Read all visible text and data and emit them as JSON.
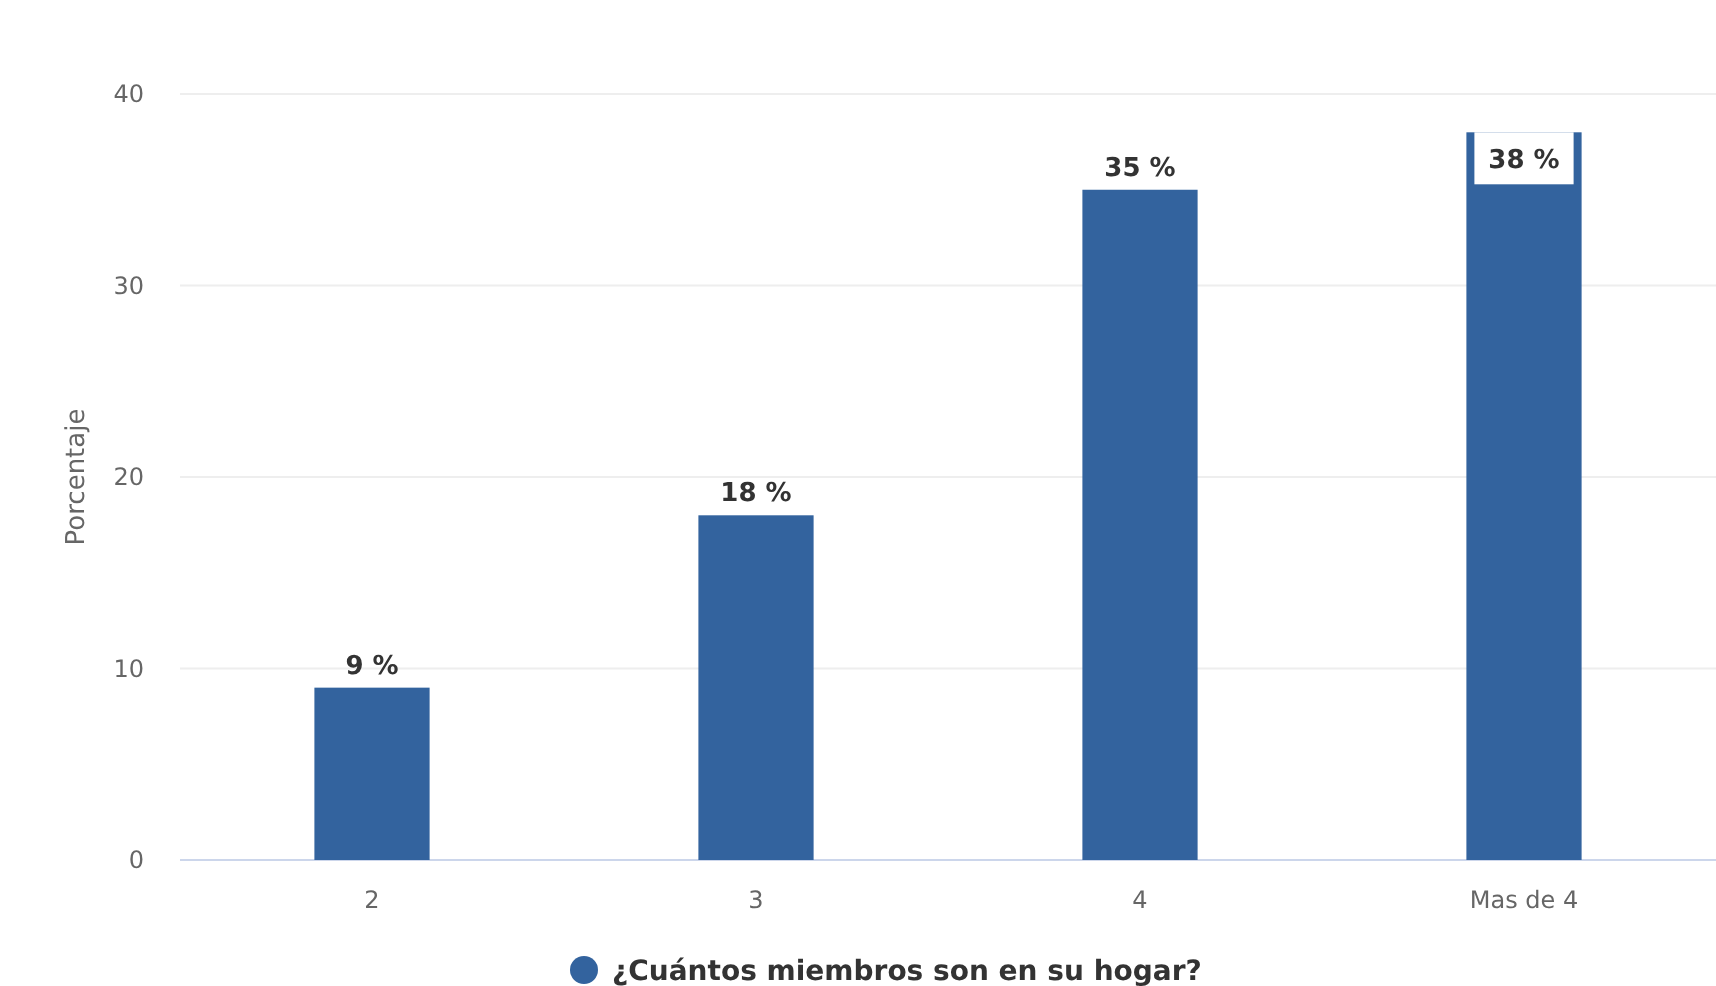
{
  "chart_data": {
    "type": "bar",
    "ylabel": "Porcentaje",
    "categories": [
      "2",
      "3",
      "4",
      "Mas de 4"
    ],
    "series": [
      {
        "name": "¿Cuántos miembros son en su hogar?",
        "color": "#33639e",
        "values": [
          9,
          18,
          35,
          38
        ],
        "value_labels": [
          "9 %",
          "18 %",
          "35 %",
          "38 %"
        ]
      }
    ],
    "ylim": [
      0,
      40
    ],
    "yticks": [
      0,
      10,
      20,
      30,
      40
    ],
    "legend": "bottom",
    "grid": "y"
  }
}
